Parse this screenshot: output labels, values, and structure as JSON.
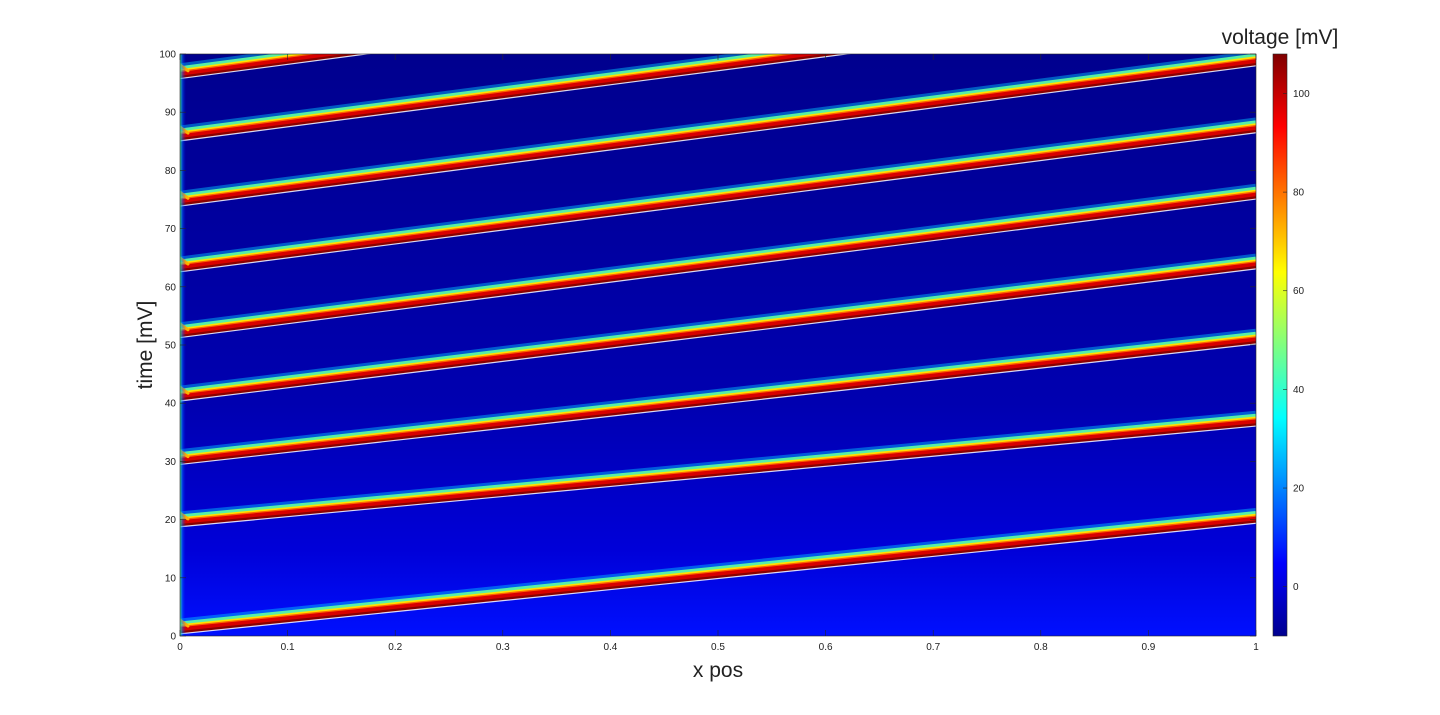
{
  "chart_data": {
    "type": "heatmap",
    "title": "",
    "xlabel": "x pos",
    "ylabel": "time [mV]",
    "xlim": [
      0,
      1
    ],
    "ylim": [
      0,
      100
    ],
    "x_ticks": [
      "0",
      "0.1",
      "0.2",
      "0.3",
      "0.4",
      "0.5",
      "0.6",
      "0.7",
      "0.8",
      "0.9",
      "1"
    ],
    "y_ticks": [
      "0",
      "10",
      "20",
      "30",
      "40",
      "50",
      "60",
      "70",
      "80",
      "90",
      "100"
    ],
    "colorbar": {
      "title": "voltage [mV]",
      "colormap": "jet",
      "range": [
        -10,
        108
      ],
      "ticks": [
        "0",
        "20",
        "40",
        "60",
        "80",
        "100"
      ]
    },
    "grid": false,
    "wavefronts": [
      {
        "t_start": 1.2,
        "t_end": 20.2
      },
      {
        "t_start": 19.6,
        "t_end": 36.9
      },
      {
        "t_start": 30.3,
        "t_end": 51.0
      },
      {
        "t_start": 41.2,
        "t_end": 63.9
      },
      {
        "t_start": 52.1,
        "t_end": 75.9
      },
      {
        "t_start": 63.4,
        "t_end": 87.3
      },
      {
        "t_start": 74.7,
        "t_end": 98.8
      },
      {
        "t_start": 85.9,
        "t_end": 110.0
      },
      {
        "t_start": 96.6,
        "t_end": 121.0
      }
    ]
  }
}
